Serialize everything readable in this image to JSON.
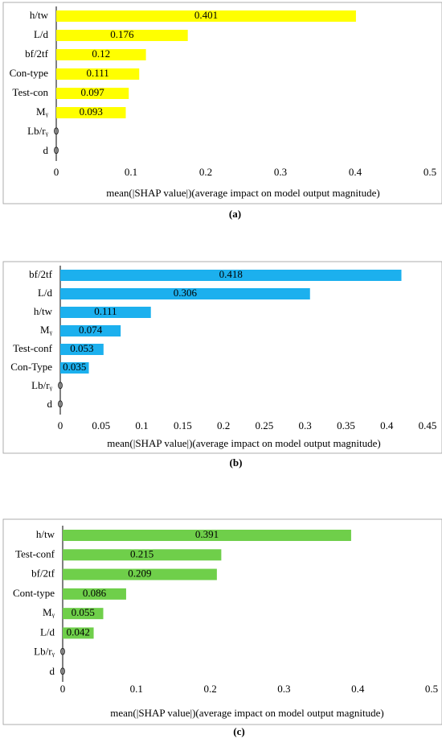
{
  "chart_data": [
    {
      "type": "bar",
      "orientation": "horizontal",
      "caption": "(a)",
      "x_label": "mean(|SHAP value|)(average impact on model output magnitude)",
      "categories": [
        "h/tw",
        "L/d",
        "bf/2tf",
        "Con-type",
        "Test-con",
        "Mᵧ",
        "Lb/rᵧ",
        "d"
      ],
      "values": [
        0.401,
        0.176,
        0.12,
        0.111,
        0.097,
        0.093,
        0,
        0
      ],
      "color": "#ffff00",
      "xlim": [
        0,
        0.5
      ],
      "xticks": [
        0,
        0.1,
        0.2,
        0.3,
        0.4,
        0.5
      ]
    },
    {
      "type": "bar",
      "orientation": "horizontal",
      "caption": "(b)",
      "x_label": "mean(|SHAP value|)(average impact on model output magnitude)",
      "categories": [
        "bf/2tf",
        "L/d",
        "h/tw",
        "Mᵧ",
        "Test-conf",
        "Con-Type",
        "Lb/rᵧ",
        "d"
      ],
      "values": [
        0.418,
        0.306,
        0.111,
        0.074,
        0.053,
        0.035,
        0,
        0
      ],
      "color": "#1cb0ee",
      "xlim": [
        0,
        0.45
      ],
      "xticks": [
        0,
        0.05,
        0.1,
        0.15,
        0.2,
        0.25,
        0.3,
        0.35,
        0.4,
        0.45
      ]
    },
    {
      "type": "bar",
      "orientation": "horizontal",
      "caption": "(c)",
      "x_label": "mean(|SHAP value|)(average impact on model output magnitude)",
      "categories": [
        "h/tw",
        "Test-conf",
        "bf/2tf",
        "Cont-type",
        "Mᵧ",
        "L/d",
        "Lb/rᵧ",
        "d"
      ],
      "values": [
        0.391,
        0.215,
        0.209,
        0.086,
        0.055,
        0.042,
        0,
        0
      ],
      "color": "#6fcf4a",
      "xlim": [
        0,
        0.5
      ],
      "xticks": [
        0,
        0.1,
        0.2,
        0.3,
        0.4,
        0.5
      ]
    }
  ]
}
